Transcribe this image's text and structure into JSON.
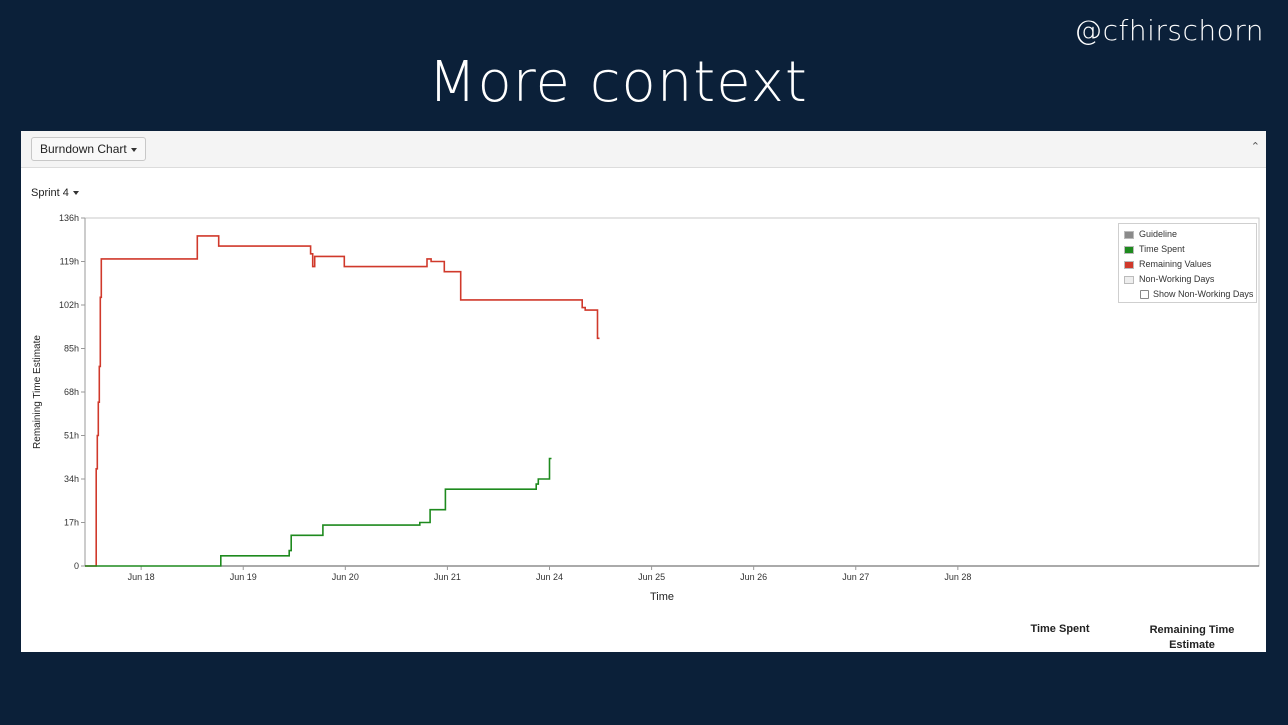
{
  "handle": "@cfhirschorn",
  "slide_title": "More context",
  "toolbar": {
    "report_label": "Burndown Chart"
  },
  "sprint_label": "Sprint 4",
  "legend": {
    "items": [
      {
        "label": "Guideline",
        "color": "#8a8a8a"
      },
      {
        "label": "Time Spent",
        "color": "#1e8a1e"
      },
      {
        "label": "Remaining Values",
        "color": "#d0392b"
      },
      {
        "label": "Non-Working Days",
        "color": "#eeeeee"
      }
    ],
    "checkbox_label": "Show Non-Working Days"
  },
  "table": {
    "time_spent_header": "Time Spent",
    "remaining_header_line1": "Remaining Time",
    "remaining_header_line2": "Estimate"
  },
  "chart_data": {
    "type": "line",
    "title": "",
    "xlabel": "Time",
    "ylabel": "Remaining Time Estimate",
    "ylim": [
      0,
      136
    ],
    "xlim": [
      17.45,
      28.95
    ],
    "yticks": [
      0,
      17,
      34,
      51,
      68,
      85,
      102,
      119,
      136
    ],
    "ytick_labels": [
      "0",
      "17h",
      "34h",
      "51h",
      "68h",
      "85h",
      "102h",
      "119h",
      "136h"
    ],
    "xticks": [
      {
        "x": 18,
        "label": "Jun 18"
      },
      {
        "x": 19,
        "label": "Jun 19"
      },
      {
        "x": 20,
        "label": "Jun 20"
      },
      {
        "x": 21,
        "label": "Jun 21"
      },
      {
        "x": 22,
        "label": "Jun 24"
      },
      {
        "x": 23,
        "label": "Jun 25"
      },
      {
        "x": 24,
        "label": "Jun 26"
      },
      {
        "x": 25,
        "label": "Jun 27"
      },
      {
        "x": 26,
        "label": "Jun 28"
      }
    ],
    "series": [
      {
        "name": "Remaining Values",
        "color": "#d0392b",
        "points": [
          [
            17.45,
            0
          ],
          [
            17.56,
            0
          ],
          [
            17.56,
            38
          ],
          [
            17.57,
            38
          ],
          [
            17.57,
            51
          ],
          [
            17.58,
            51
          ],
          [
            17.58,
            64
          ],
          [
            17.59,
            64
          ],
          [
            17.59,
            78
          ],
          [
            17.6,
            78
          ],
          [
            17.6,
            105
          ],
          [
            17.61,
            105
          ],
          [
            17.61,
            120
          ],
          [
            18.55,
            120
          ],
          [
            18.55,
            129
          ],
          [
            18.76,
            129
          ],
          [
            18.76,
            125
          ],
          [
            19.66,
            125
          ],
          [
            19.66,
            122
          ],
          [
            19.68,
            122
          ],
          [
            19.68,
            117
          ],
          [
            19.7,
            117
          ],
          [
            19.7,
            121
          ],
          [
            19.99,
            121
          ],
          [
            19.99,
            117
          ],
          [
            20.8,
            117
          ],
          [
            20.8,
            120
          ],
          [
            20.84,
            120
          ],
          [
            20.84,
            119
          ],
          [
            20.97,
            119
          ],
          [
            20.97,
            115
          ],
          [
            21.13,
            115
          ],
          [
            21.13,
            104
          ],
          [
            22.32,
            104
          ],
          [
            22.32,
            101
          ],
          [
            22.35,
            101
          ],
          [
            22.35,
            100
          ],
          [
            22.47,
            100
          ],
          [
            22.47,
            89
          ],
          [
            22.49,
            89
          ]
        ]
      },
      {
        "name": "Time Spent",
        "color": "#1e8a1e",
        "points": [
          [
            17.45,
            0
          ],
          [
            18.78,
            0
          ],
          [
            18.78,
            4
          ],
          [
            19.45,
            4
          ],
          [
            19.45,
            6
          ],
          [
            19.47,
            6
          ],
          [
            19.47,
            12
          ],
          [
            19.78,
            12
          ],
          [
            19.78,
            16
          ],
          [
            20.73,
            16
          ],
          [
            20.73,
            17
          ],
          [
            20.83,
            17
          ],
          [
            20.83,
            22
          ],
          [
            20.98,
            22
          ],
          [
            20.98,
            30
          ],
          [
            21.87,
            30
          ],
          [
            21.87,
            32
          ],
          [
            21.89,
            32
          ],
          [
            21.89,
            34
          ],
          [
            22.0,
            34
          ],
          [
            22.0,
            42
          ],
          [
            22.02,
            42
          ]
        ]
      }
    ],
    "grid": false,
    "legend_position": "top-right"
  }
}
